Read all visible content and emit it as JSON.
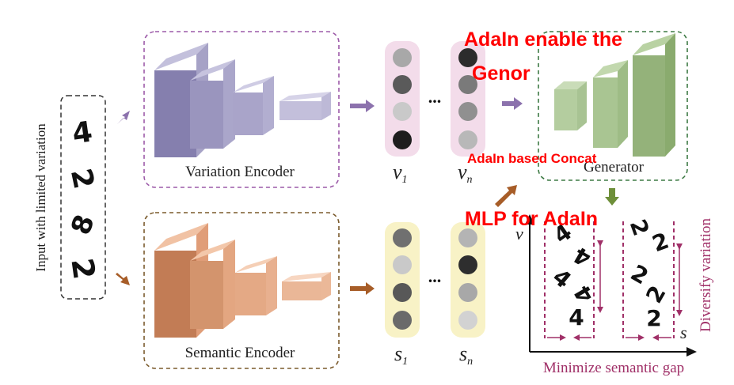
{
  "colors": {
    "variation_fill": "#a6a2c6",
    "variation_dark": "#857fae",
    "variation_border": "#9c5aa8",
    "semantic_fill": "#e7a883",
    "semantic_dark": "#c27c55",
    "semantic_border": "#7a5a2c",
    "generator_fill": "#9dbb84",
    "generator_border": "#3d7a44",
    "vec_pink_bg": "#f3dcea",
    "vec_yellow_bg": "#f8f2c6",
    "purple_arrow": "#8c72ad",
    "brown_arrow": "#a75d28",
    "green_arrow": "#6e8f3a",
    "maroon": "#a03068",
    "red_annotation": "#ff0000"
  },
  "input_panel": {
    "side_label": "Input with limited variation",
    "digits": [
      "4",
      "2",
      "8",
      "2"
    ]
  },
  "variation_encoder": {
    "label": "Variation Encoder"
  },
  "semantic_encoder": {
    "label": "Semantic Encoder"
  },
  "generator": {
    "label": "Generator"
  },
  "vectors": {
    "v1": {
      "label": "v",
      "sub": "1"
    },
    "vn": {
      "label": "v",
      "sub": "n"
    },
    "s1": {
      "label": "s",
      "sub": "1"
    },
    "sn": {
      "label": "s",
      "sub": "n"
    },
    "ellipsis": "..."
  },
  "plot": {
    "y_axis_label": "v",
    "x_axis_label": "s",
    "right_label": "Diversify variation",
    "bottom_label": "Minimize semantic gap",
    "left_digits": [
      "4",
      "4",
      "4",
      "4",
      "4"
    ],
    "right_digits": [
      "2",
      "2",
      "2",
      "2",
      "2"
    ]
  },
  "annotations": {
    "title_line1": "AdaIn enable the",
    "title_line2": "Genor",
    "concat": "AdaIn based Concat",
    "mlp": "MLP for AdaIn"
  }
}
